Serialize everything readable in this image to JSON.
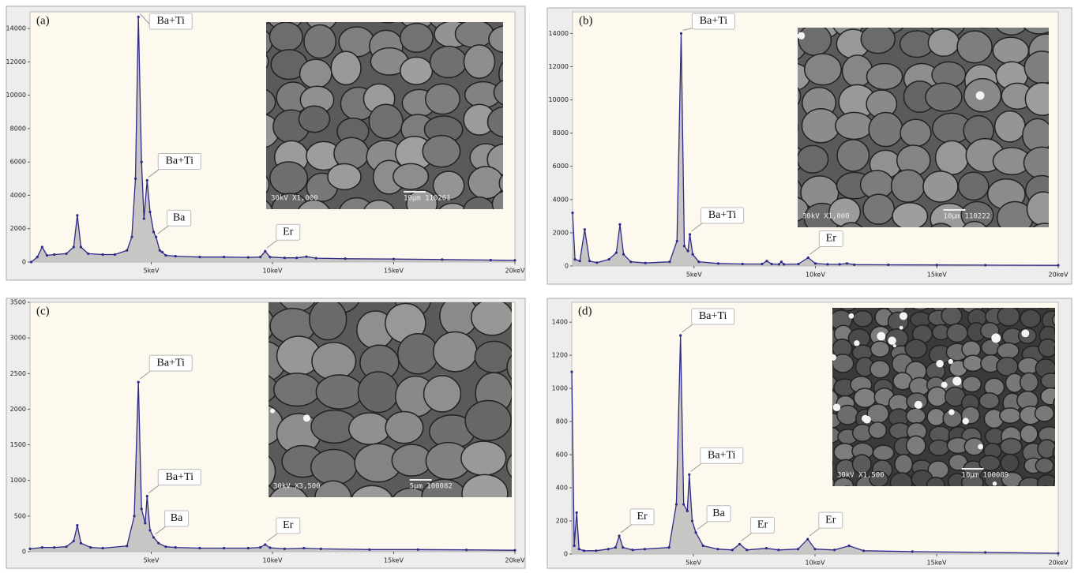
{
  "chart_data": [
    {
      "type": "line",
      "label": "(a)",
      "color": "#2e2a8a",
      "fill": "#b9b9b9",
      "xlim": [
        0,
        20
      ],
      "xticks": [
        {
          "value": 5,
          "label": "5keV"
        },
        {
          "value": 10,
          "label": "10keV"
        },
        {
          "value": 15,
          "label": "15keV"
        },
        {
          "value": 20,
          "label": "20keV"
        }
      ],
      "ylim": [
        0,
        15000
      ],
      "yticks": [
        0,
        2000,
        4000,
        6000,
        8000,
        10000,
        12000,
        14000
      ],
      "x": [
        0.05,
        0.3,
        0.5,
        0.7,
        1.0,
        1.5,
        1.8,
        1.95,
        2.1,
        2.4,
        3.0,
        3.5,
        4.0,
        4.2,
        4.35,
        4.47,
        4.6,
        4.7,
        4.83,
        4.95,
        5.1,
        5.2,
        5.35,
        5.45,
        5.6,
        6.0,
        7.0,
        8.0,
        9.0,
        9.5,
        9.7,
        9.9,
        10.5,
        11.0,
        11.4,
        11.8,
        13,
        15,
        17,
        19,
        20
      ],
      "values": [
        0,
        300,
        900,
        400,
        450,
        500,
        900,
        2800,
        900,
        500,
        450,
        450,
        700,
        1500,
        5000,
        14700,
        6000,
        2600,
        4900,
        3000,
        1800,
        1500,
        700,
        600,
        400,
        350,
        300,
        300,
        280,
        300,
        650,
        300,
        250,
        250,
        320,
        230,
        200,
        180,
        150,
        120,
        100
      ],
      "annotations": [
        {
          "text": "Ba+Ti",
          "x": 4.47
        },
        {
          "text": "Ba+Ti",
          "x": 4.83
        },
        {
          "text": "Ba",
          "x": 5.2
        },
        {
          "text": "Er",
          "x": 9.7
        }
      ],
      "inset_caption": [
        "30kV X1,000",
        "10µm 110261"
      ]
    },
    {
      "type": "line",
      "label": "(b)",
      "color": "#2e2a8a",
      "fill": "#b9b9b9",
      "xlim": [
        0,
        20
      ],
      "xticks": [
        {
          "value": 5,
          "label": "5keV"
        },
        {
          "value": 10,
          "label": "10keV"
        },
        {
          "value": 15,
          "label": "15keV"
        },
        {
          "value": 20,
          "label": "20keV"
        }
      ],
      "ylim": [
        0,
        15300
      ],
      "yticks": [
        0,
        2000,
        4000,
        6000,
        8000,
        10000,
        12000,
        14000
      ],
      "x": [
        0,
        0.1,
        0.3,
        0.5,
        0.7,
        1.0,
        1.5,
        1.8,
        1.95,
        2.1,
        2.4,
        3.0,
        4.0,
        4.3,
        4.47,
        4.6,
        4.75,
        4.83,
        4.95,
        5.2,
        6.0,
        7.0,
        7.8,
        8.0,
        8.2,
        8.5,
        8.6,
        8.7,
        9.3,
        9.7,
        10.0,
        10.5,
        11.0,
        11.3,
        11.6,
        13,
        15,
        17,
        20
      ],
      "values": [
        3200,
        400,
        300,
        2200,
        300,
        200,
        400,
        800,
        2500,
        700,
        250,
        180,
        250,
        1500,
        14000,
        1200,
        900,
        1900,
        700,
        250,
        150,
        120,
        120,
        300,
        120,
        100,
        250,
        100,
        120,
        500,
        150,
        100,
        100,
        150,
        80,
        70,
        60,
        50,
        40
      ],
      "annotations": [
        {
          "text": "Ba+Ti",
          "x": 4.47
        },
        {
          "text": "Ba+Ti",
          "x": 4.83
        },
        {
          "text": "Er",
          "x": 9.7
        }
      ],
      "inset_caption": [
        "30kV X1,000",
        "10µm 110222"
      ]
    },
    {
      "type": "line",
      "label": "(c)",
      "color": "#2e2a8a",
      "fill": "#b9b9b9",
      "xlim": [
        0,
        20
      ],
      "xticks": [
        {
          "value": 5,
          "label": "5keV"
        },
        {
          "value": 10,
          "label": "10keV"
        },
        {
          "value": 15,
          "label": "15keV"
        },
        {
          "value": 20,
          "label": "20keV"
        }
      ],
      "ylim": [
        0,
        3500
      ],
      "yticks": [
        0,
        500,
        1000,
        1500,
        2000,
        2500,
        3000,
        3500
      ],
      "x": [
        0,
        0.5,
        1.0,
        1.5,
        1.8,
        1.95,
        2.1,
        2.5,
        3.0,
        4.0,
        4.3,
        4.47,
        4.6,
        4.75,
        4.83,
        4.95,
        5.1,
        5.3,
        5.6,
        6.0,
        7.0,
        8.0,
        9.0,
        9.5,
        9.7,
        9.9,
        10.5,
        11.3,
        12,
        14,
        16,
        18,
        20
      ],
      "values": [
        40,
        60,
        60,
        70,
        150,
        370,
        120,
        60,
        50,
        80,
        500,
        2380,
        600,
        400,
        780,
        300,
        200,
        120,
        70,
        60,
        50,
        50,
        50,
        60,
        100,
        55,
        40,
        50,
        40,
        30,
        30,
        25,
        20
      ],
      "annotations": [
        {
          "text": "Ba+Ti",
          "x": 4.47
        },
        {
          "text": "Ba+Ti",
          "x": 4.83
        },
        {
          "text": "Ba",
          "x": 5.1
        },
        {
          "text": "Er",
          "x": 9.7
        }
      ],
      "inset_caption": [
        "30kV X3,500",
        "5µm 100082"
      ]
    },
    {
      "type": "line",
      "label": "(d)",
      "color": "#2e2a8a",
      "fill": "#b9b9b9",
      "xlim": [
        0,
        20
      ],
      "xticks": [
        {
          "value": 5,
          "label": "5keV"
        },
        {
          "value": 10,
          "label": "10keV"
        },
        {
          "value": 15,
          "label": "15keV"
        },
        {
          "value": 20,
          "label": "20keV"
        }
      ],
      "ylim": [
        0,
        1520
      ],
      "yticks": [
        0,
        200,
        400,
        600,
        800,
        1000,
        1200,
        1400
      ],
      "x": [
        0,
        0.1,
        0.2,
        0.3,
        0.5,
        1.0,
        1.5,
        1.8,
        1.95,
        2.1,
        2.5,
        3.0,
        4.0,
        4.3,
        4.47,
        4.6,
        4.75,
        4.83,
        4.95,
        5.1,
        5.4,
        6.0,
        6.6,
        6.9,
        7.2,
        8.0,
        8.5,
        9.3,
        9.7,
        10.0,
        10.8,
        11.4,
        12,
        14,
        17,
        20
      ],
      "values": [
        1100,
        50,
        250,
        30,
        20,
        20,
        30,
        40,
        110,
        40,
        25,
        30,
        40,
        300,
        1320,
        300,
        260,
        480,
        200,
        130,
        50,
        30,
        25,
        60,
        25,
        35,
        25,
        30,
        90,
        30,
        25,
        50,
        20,
        15,
        10,
        5
      ],
      "annotations": [
        {
          "text": "Er",
          "x": 1.95
        },
        {
          "text": "Ba+Ti",
          "x": 4.47
        },
        {
          "text": "Ba+Ti",
          "x": 4.83
        },
        {
          "text": "Ba",
          "x": 5.1
        },
        {
          "text": "Er",
          "x": 6.9
        },
        {
          "text": "Er",
          "x": 9.7
        }
      ],
      "inset_caption": [
        "30kV X1,500",
        "10µm 100089"
      ]
    }
  ]
}
